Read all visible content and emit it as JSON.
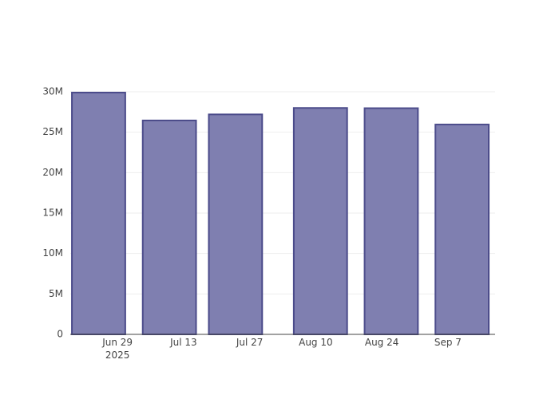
{
  "chart_data": {
    "type": "bar",
    "x": [
      "2025-06-25",
      "2025-07-10",
      "2025-07-24",
      "2025-08-11",
      "2025-08-26",
      "2025-09-10"
    ],
    "values": [
      29900000,
      26450000,
      27200000,
      28000000,
      27970000,
      25950000
    ],
    "color": "#7f7fb0",
    "edge_color": "#4b4b8a",
    "xlim": [
      "2025-06-19",
      "2025-09-17"
    ],
    "xticks": [
      {
        "value": "2025-06-29",
        "label": "Jun 29\n2025"
      },
      {
        "value": "2025-07-13",
        "label": "Jul 13"
      },
      {
        "value": "2025-07-27",
        "label": "Jul 27"
      },
      {
        "value": "2025-08-10",
        "label": "Aug 10"
      },
      {
        "value": "2025-08-24",
        "label": "Aug 24"
      },
      {
        "value": "2025-09-07",
        "label": "Sep 7"
      }
    ],
    "ylim": [
      0,
      30000000
    ],
    "yticks": [
      0,
      {
        "value": 5000000,
        "label": "5M"
      },
      {
        "value": 10000000,
        "label": "10M"
      },
      {
        "value": 15000000,
        "label": "15M"
      },
      {
        "value": 20000000,
        "label": "20M"
      },
      {
        "value": 25000000,
        "label": "25M"
      },
      {
        "value": 30000000,
        "label": "30M"
      }
    ],
    "grid": true
  }
}
